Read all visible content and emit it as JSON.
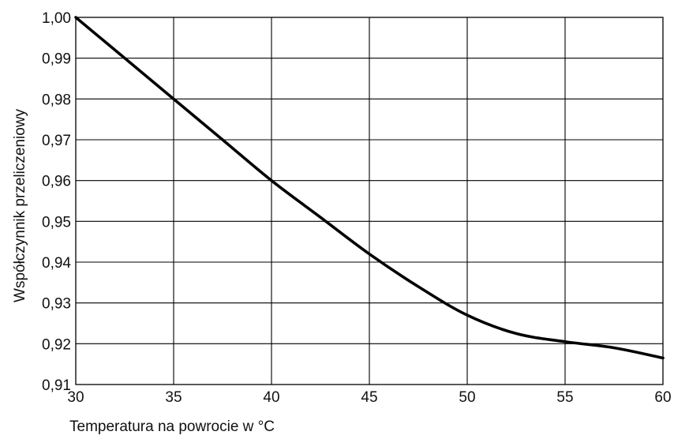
{
  "chart_data": {
    "type": "line",
    "title": "",
    "xlabel": "Temperatura na powrocie w °C",
    "ylabel": "Współczynnik przeliczeniowy",
    "xlim": [
      30,
      60
    ],
    "ylim": [
      0.91,
      1.0
    ],
    "grid": true,
    "x_ticks": [
      30,
      35,
      40,
      45,
      50,
      55,
      60
    ],
    "y_ticks": [
      0.91,
      0.92,
      0.93,
      0.94,
      0.95,
      0.96,
      0.97,
      0.98,
      0.99,
      1.0
    ],
    "x_tick_labels": [
      "30",
      "35",
      "40",
      "45",
      "50",
      "55",
      "60"
    ],
    "y_tick_labels": [
      "0,91",
      "0,92",
      "0,93",
      "0,94",
      "0,95",
      "0,96",
      "0,97",
      "0,98",
      "0,99",
      "1,00"
    ],
    "series": [
      {
        "x": [
          30,
          32.5,
          35,
          37.5,
          40,
          42.5,
          45,
          47.5,
          50,
          52.5,
          55,
          57.5,
          60
        ],
        "y": [
          1.0,
          0.99,
          0.98,
          0.97,
          0.96,
          0.951,
          0.942,
          0.934,
          0.927,
          0.9225,
          0.9205,
          0.919,
          0.9165
        ]
      }
    ],
    "colors": {
      "line": "#000000",
      "grid": "#000000",
      "background": "#ffffff"
    }
  }
}
